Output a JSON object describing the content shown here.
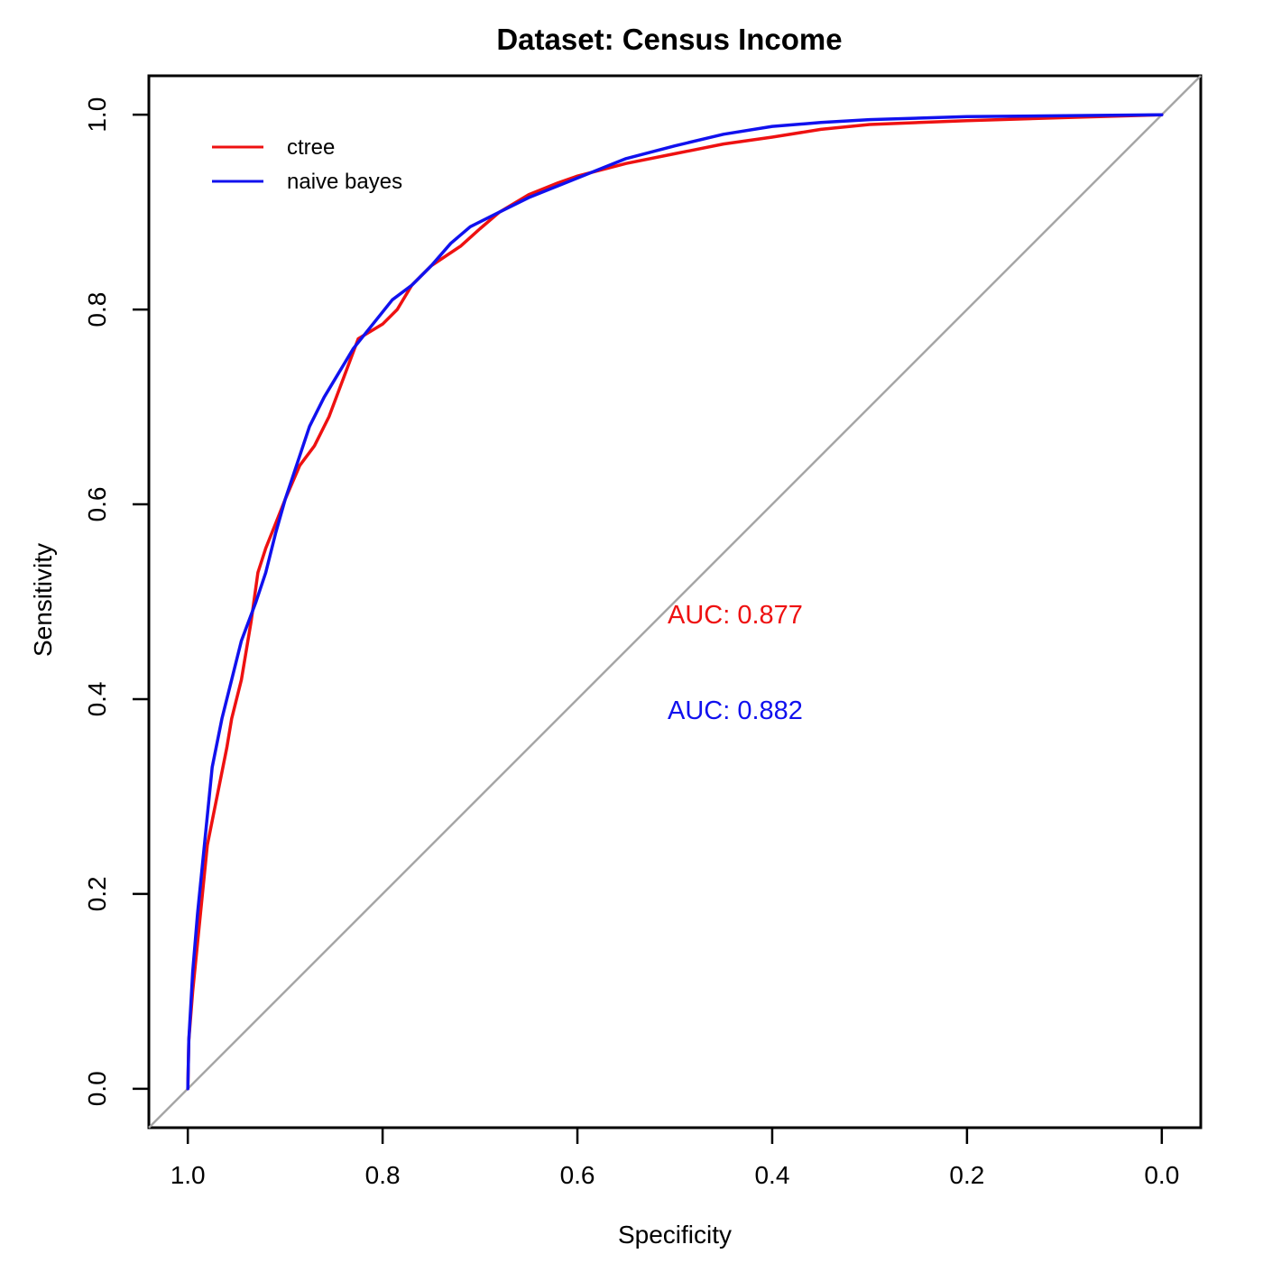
{
  "chart_data": {
    "type": "line",
    "title": "Dataset: Census Income",
    "xlabel": "Specificity",
    "ylabel": "Sensitivity",
    "x_reversed": true,
    "xlim": [
      1.04,
      -0.04
    ],
    "ylim": [
      -0.04,
      1.04
    ],
    "x_ticks": [
      "1.0",
      "0.8",
      "0.6",
      "0.4",
      "0.2",
      "0.0"
    ],
    "y_ticks": [
      "0.0",
      "0.2",
      "0.4",
      "0.6",
      "0.8",
      "1.0"
    ],
    "grid": false,
    "legend_position": "top-left",
    "diagonal": {
      "from": [
        1,
        0
      ],
      "to": [
        0,
        1
      ],
      "color": "#a6a6a6"
    },
    "series": [
      {
        "name": "ctree",
        "color": "#ee1111",
        "auc_label": "AUC: 0.877",
        "points": [
          [
            1.0,
            0.0
          ],
          [
            0.999,
            0.05
          ],
          [
            0.995,
            0.1
          ],
          [
            0.99,
            0.15
          ],
          [
            0.985,
            0.2
          ],
          [
            0.98,
            0.25
          ],
          [
            0.97,
            0.3
          ],
          [
            0.96,
            0.35
          ],
          [
            0.955,
            0.38
          ],
          [
            0.945,
            0.42
          ],
          [
            0.935,
            0.48
          ],
          [
            0.928,
            0.53
          ],
          [
            0.92,
            0.555
          ],
          [
            0.91,
            0.58
          ],
          [
            0.9,
            0.605
          ],
          [
            0.885,
            0.64
          ],
          [
            0.87,
            0.66
          ],
          [
            0.855,
            0.69
          ],
          [
            0.84,
            0.73
          ],
          [
            0.825,
            0.77
          ],
          [
            0.8,
            0.785
          ],
          [
            0.785,
            0.8
          ],
          [
            0.77,
            0.825
          ],
          [
            0.75,
            0.845
          ],
          [
            0.72,
            0.865
          ],
          [
            0.7,
            0.883
          ],
          [
            0.68,
            0.9
          ],
          [
            0.65,
            0.918
          ],
          [
            0.62,
            0.93
          ],
          [
            0.6,
            0.937
          ],
          [
            0.55,
            0.95
          ],
          [
            0.5,
            0.96
          ],
          [
            0.45,
            0.97
          ],
          [
            0.4,
            0.977
          ],
          [
            0.35,
            0.985
          ],
          [
            0.3,
            0.99
          ],
          [
            0.2,
            0.994
          ],
          [
            0.1,
            0.997
          ],
          [
            0.0,
            1.0
          ]
        ]
      },
      {
        "name": "naive bayes",
        "color": "#1111ee",
        "auc_label": "AUC: 0.882",
        "points": [
          [
            1.0,
            0.0
          ],
          [
            0.999,
            0.05
          ],
          [
            0.995,
            0.12
          ],
          [
            0.99,
            0.18
          ],
          [
            0.985,
            0.23
          ],
          [
            0.98,
            0.28
          ],
          [
            0.975,
            0.33
          ],
          [
            0.965,
            0.38
          ],
          [
            0.955,
            0.42
          ],
          [
            0.945,
            0.46
          ],
          [
            0.93,
            0.5
          ],
          [
            0.92,
            0.53
          ],
          [
            0.91,
            0.57
          ],
          [
            0.9,
            0.605
          ],
          [
            0.89,
            0.635
          ],
          [
            0.875,
            0.68
          ],
          [
            0.86,
            0.71
          ],
          [
            0.845,
            0.735
          ],
          [
            0.83,
            0.76
          ],
          [
            0.81,
            0.785
          ],
          [
            0.79,
            0.81
          ],
          [
            0.77,
            0.825
          ],
          [
            0.75,
            0.845
          ],
          [
            0.73,
            0.868
          ],
          [
            0.71,
            0.885
          ],
          [
            0.68,
            0.9
          ],
          [
            0.65,
            0.915
          ],
          [
            0.6,
            0.935
          ],
          [
            0.55,
            0.955
          ],
          [
            0.5,
            0.968
          ],
          [
            0.45,
            0.98
          ],
          [
            0.4,
            0.988
          ],
          [
            0.35,
            0.992
          ],
          [
            0.3,
            0.995
          ],
          [
            0.2,
            0.998
          ],
          [
            0.1,
            0.999
          ],
          [
            0.0,
            1.0
          ]
        ]
      }
    ]
  }
}
